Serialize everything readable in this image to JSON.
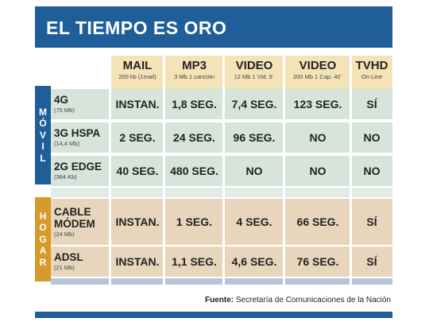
{
  "title": "EL TIEMPO ES ORO",
  "chart_data": {
    "type": "table",
    "columns": [
      {
        "label": "MAIL",
        "sub": "200 kb (1mail)"
      },
      {
        "label": "MP3",
        "sub": "3 Mb 1 canción"
      },
      {
        "label": "VIDEO",
        "sub": "12 Mb 1 Vid. 5´"
      },
      {
        "label": "VIDEO",
        "sub": "200 Mb 1 Cap. 40´"
      },
      {
        "label": "TVHD",
        "sub": "On Line"
      }
    ],
    "groups": [
      {
        "name": "MÓVIL",
        "rows": [
          {
            "label": [
              "4G"
            ],
            "sub": "(75 Mb)",
            "values": [
              "INSTAN.",
              "1,8 SEG.",
              "7,4 SEG.",
              "123 SEG.",
              "SÍ"
            ]
          },
          {
            "label": [
              "3G HSPA"
            ],
            "sub": "(14,4 Mb)",
            "values": [
              "2 SEG.",
              "24 SEG.",
              "96 SEG.",
              "NO",
              "NO"
            ]
          },
          {
            "label": [
              "2G EDGE"
            ],
            "sub": "(384 Kb)",
            "values": [
              "40 SEG.",
              "480 SEG.",
              "NO",
              "NO",
              "NO"
            ]
          }
        ]
      },
      {
        "name": "HOGAR",
        "rows": [
          {
            "label": [
              "CABLE",
              "MÓDEM"
            ],
            "sub": "(24 Mb)",
            "values": [
              "INSTAN.",
              "1 SEG.",
              "4 SEG.",
              "66 SEG.",
              "SÍ"
            ]
          },
          {
            "label": [
              "ADSL"
            ],
            "sub": "(21 Mb)",
            "values": [
              "INSTAN.",
              "1,1 SEG.",
              "4,6 SEG.",
              "76 SEG.",
              "SÍ"
            ]
          }
        ]
      }
    ]
  },
  "footer": {
    "label": "Fuente:",
    "text": "Secretaría de Comunicaciones de la Nación"
  },
  "colors": {
    "blue": "#1f5e98",
    "orange": "#d69a2a",
    "header_bg": "#f3e3b6",
    "movil_row": "#d6e4dc",
    "hogar_row": "#e7d6bc"
  }
}
